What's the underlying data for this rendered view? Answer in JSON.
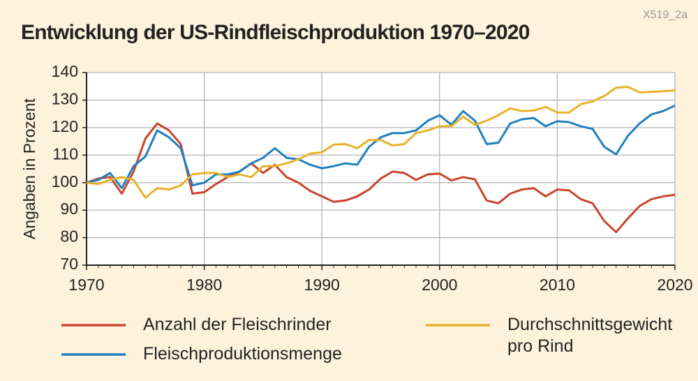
{
  "chart_data": {
    "type": "line",
    "title": "Entwicklung der US-Rindfleischproduktion 1970–2020",
    "code": "X519_2a",
    "y_label": "Angaben in Prozent",
    "x": [
      1970,
      1971,
      1972,
      1973,
      1974,
      1975,
      1976,
      1977,
      1978,
      1979,
      1980,
      1981,
      1982,
      1983,
      1984,
      1985,
      1986,
      1987,
      1988,
      1989,
      1990,
      1991,
      1992,
      1993,
      1994,
      1995,
      1996,
      1997,
      1998,
      1999,
      2000,
      2001,
      2002,
      2003,
      2004,
      2005,
      2006,
      2007,
      2008,
      2009,
      2010,
      2011,
      2012,
      2013,
      2014,
      2015,
      2016,
      2017,
      2018,
      2019,
      2020
    ],
    "xlim": [
      1970,
      2020
    ],
    "xticks": [
      1970,
      1980,
      1990,
      2000,
      2010,
      2020
    ],
    "ylim": [
      70,
      140
    ],
    "yticks": [
      70,
      80,
      90,
      100,
      110,
      120,
      130,
      140
    ],
    "grid": true,
    "series": [
      {
        "name": "Anzahl der Fleischrinder",
        "color": "#c8452a",
        "values": [
          100,
          101.5,
          102,
          96,
          104,
          116,
          121.5,
          119,
          114,
          96,
          96.5,
          99.5,
          102,
          104,
          107,
          103.5,
          106.5,
          102,
          100,
          97,
          95,
          93,
          93.5,
          95,
          97.5,
          101.5,
          104,
          103.5,
          101,
          103,
          103.3,
          100.8,
          102,
          101.2,
          93.5,
          92.5,
          96,
          97.5,
          98,
          95,
          97.5,
          97.2,
          94,
          92.5,
          86,
          82,
          87,
          91.5,
          94,
          95,
          95.6
        ]
      },
      {
        "name": "Fleischproduktionsmenge",
        "color": "#1f7fc0",
        "values": [
          100,
          101,
          103.5,
          98,
          106,
          109.5,
          119,
          116.5,
          112.5,
          99,
          100,
          103,
          103,
          104,
          107,
          109,
          112.5,
          109,
          108.5,
          106.5,
          105.2,
          106,
          107,
          106.5,
          113,
          116.5,
          118,
          118,
          119,
          122.5,
          124.5,
          121,
          126,
          122.5,
          114,
          114.5,
          121.5,
          123,
          123.5,
          120.5,
          122.3,
          122,
          120.5,
          119.5,
          113,
          110.3,
          117,
          121.5,
          124.8,
          126,
          128
        ]
      },
      {
        "name": "Durchschnittsgewicht pro Rind",
        "color": "#e8b12a",
        "values": [
          100,
          99.5,
          101,
          102,
          101,
          94.5,
          98,
          97.5,
          99,
          103,
          103.5,
          103.5,
          102,
          103,
          102,
          106,
          106,
          107,
          108.5,
          110.5,
          111,
          113.8,
          114,
          112.5,
          115.5,
          115.5,
          113.5,
          114,
          118,
          119,
          120.5,
          120.5,
          124,
          121,
          122.5,
          124.5,
          127,
          126,
          126.2,
          127.5,
          125.5,
          125.5,
          128.5,
          129.5,
          131.5,
          134.5,
          134.8,
          132.8,
          133,
          133.2,
          133.5
        ]
      }
    ]
  }
}
